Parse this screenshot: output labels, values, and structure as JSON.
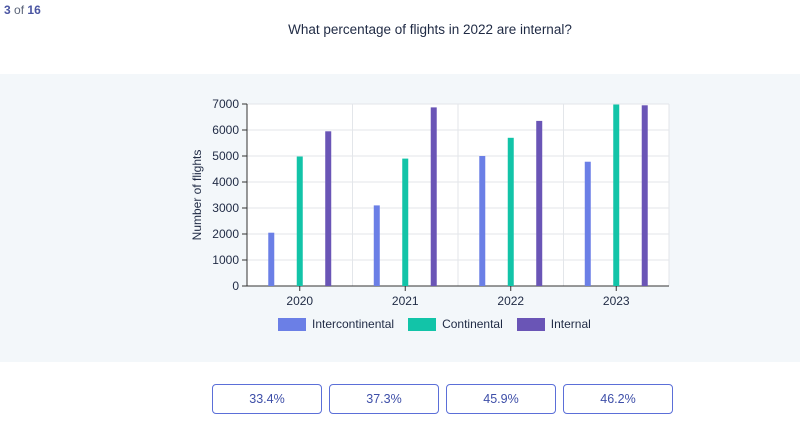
{
  "progress": {
    "current": "3",
    "of_word": "of",
    "total": "16"
  },
  "question": "What percentage of flights in 2022 are internal?",
  "answers": [
    "33.4%",
    "37.3%",
    "45.9%",
    "46.2%"
  ],
  "colors": {
    "intercontinental": "#6b7fe6",
    "continental": "#12c4a8",
    "internal": "#6a55b6",
    "panel_bg": "#f3f7fa",
    "answer_border": "#5b6fd8"
  },
  "chart_data": {
    "type": "bar",
    "categories": [
      "2020",
      "2021",
      "2022",
      "2023"
    ],
    "series": [
      {
        "name": "Intercontinental",
        "values": [
          2050,
          3100,
          5000,
          4780
        ]
      },
      {
        "name": "Continental",
        "values": [
          4980,
          4900,
          5700,
          6980
        ]
      },
      {
        "name": "Internal",
        "values": [
          5950,
          6870,
          6350,
          6950
        ]
      }
    ],
    "ylabel": "Number of flights",
    "xlabel": "",
    "ylim": [
      0,
      7000
    ],
    "yticks": [
      0,
      1000,
      2000,
      3000,
      4000,
      5000,
      6000,
      7000
    ],
    "grid": true,
    "legend_position": "bottom"
  }
}
